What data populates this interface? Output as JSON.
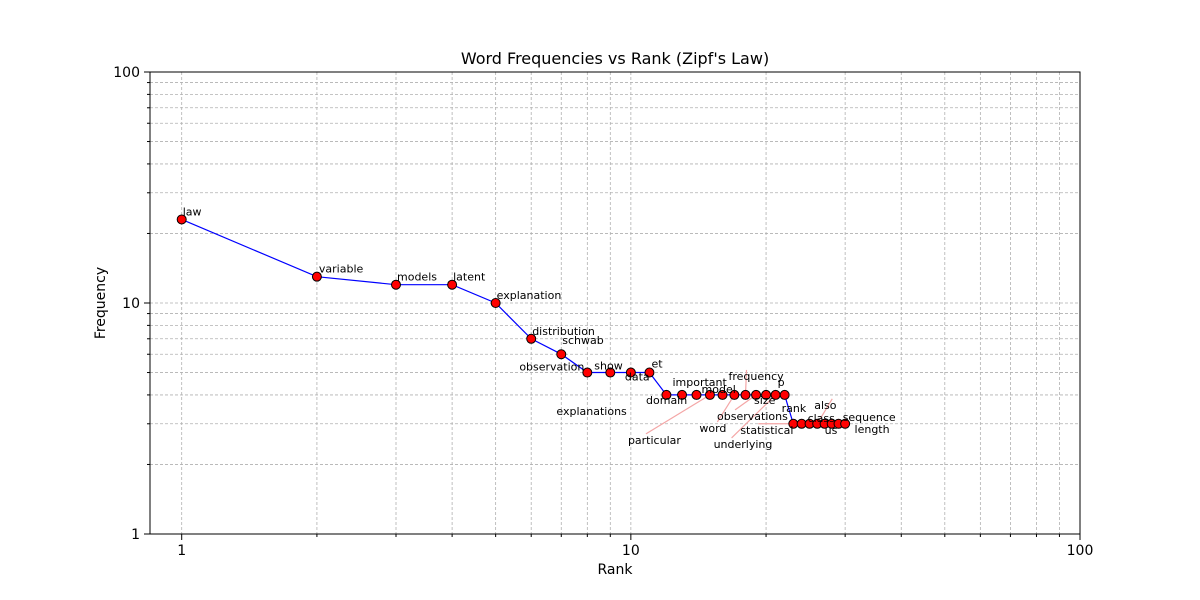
{
  "chart_data": {
    "type": "line",
    "title": "Word Frequencies vs Rank (Zipf's Law)",
    "xlabel": "Rank",
    "ylabel": "Frequency",
    "x_scale": "log",
    "y_scale": "log",
    "xlim": [
      0.85,
      100
    ],
    "ylim": [
      1,
      100
    ],
    "grid": true,
    "x_ticks": [
      {
        "value": 1,
        "label": "1"
      },
      {
        "value": 10,
        "label": "10"
      },
      {
        "value": 100,
        "label": "100"
      }
    ],
    "y_ticks": [
      {
        "value": 1,
        "label": "1"
      },
      {
        "value": 10,
        "label": "10"
      },
      {
        "value": 100,
        "label": "100"
      }
    ],
    "line_color": "#0000ff",
    "marker_color": "#ff0000",
    "marker_edge_color": "#000000",
    "annotation_arrow_color": "#f4a6a6",
    "points": [
      {
        "rank": 1,
        "freq": 23,
        "word": "law"
      },
      {
        "rank": 2,
        "freq": 13,
        "word": "variable"
      },
      {
        "rank": 3,
        "freq": 12,
        "word": "models"
      },
      {
        "rank": 4,
        "freq": 12,
        "word": "latent"
      },
      {
        "rank": 5,
        "freq": 10,
        "word": "explanation"
      },
      {
        "rank": 6,
        "freq": 7,
        "word": "distribution"
      },
      {
        "rank": 7,
        "freq": 6,
        "word": "schwab"
      },
      {
        "rank": 8,
        "freq": 5,
        "word": "observation"
      },
      {
        "rank": 9,
        "freq": 5,
        "word": "show"
      },
      {
        "rank": 10,
        "freq": 5,
        "word": "data"
      },
      {
        "rank": 11,
        "freq": 5,
        "word": "et"
      },
      {
        "rank": 12,
        "freq": 4,
        "word": "explanations"
      },
      {
        "rank": 13,
        "freq": 4,
        "word": "domain"
      },
      {
        "rank": 14,
        "freq": 4,
        "word": "important"
      },
      {
        "rank": 15,
        "freq": 4,
        "word": "particular"
      },
      {
        "rank": 16,
        "freq": 4,
        "word": "model"
      },
      {
        "rank": 17,
        "freq": 4,
        "word": "word"
      },
      {
        "rank": 18,
        "freq": 4,
        "word": "frequency"
      },
      {
        "rank": 19,
        "freq": 4,
        "word": "observations"
      },
      {
        "rank": 20,
        "freq": 4,
        "word": "size"
      },
      {
        "rank": 21,
        "freq": 4,
        "word": "underlying"
      },
      {
        "rank": 22,
        "freq": 4,
        "word": "p"
      },
      {
        "rank": 23,
        "freq": 3,
        "word": "statistical"
      },
      {
        "rank": 24,
        "freq": 3,
        "word": "rank"
      },
      {
        "rank": 25,
        "freq": 3,
        "word": "class"
      },
      {
        "rank": 26,
        "freq": 3,
        "word": "also"
      },
      {
        "rank": 27,
        "freq": 3,
        "word": "us"
      },
      {
        "rank": 28,
        "freq": 3,
        "word": "sequence"
      },
      {
        "rank": 29,
        "freq": 3,
        "word": "length"
      },
      {
        "rank": 30,
        "freq": 3,
        "word": ""
      }
    ]
  }
}
